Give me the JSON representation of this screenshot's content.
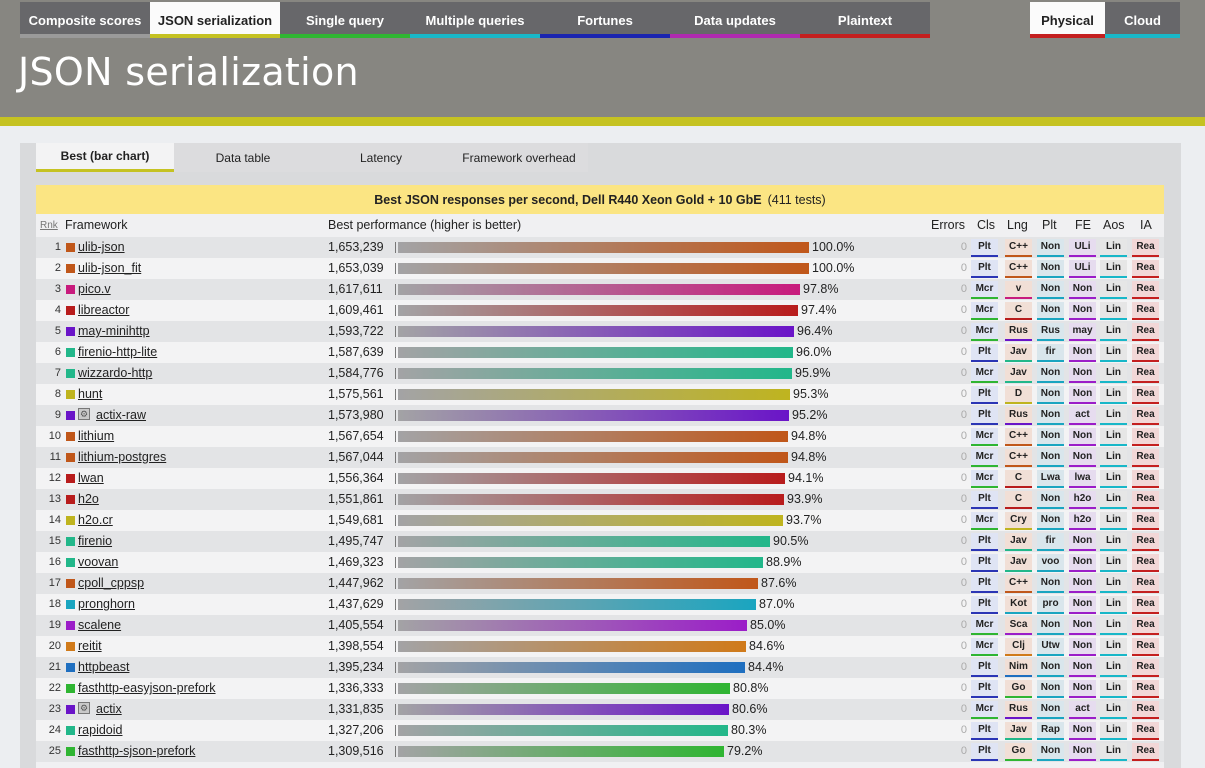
{
  "nav": {
    "tabs": [
      {
        "label": "Composite scores",
        "color": "#9a9a9a",
        "active": false
      },
      {
        "label": "JSON serialization",
        "color": "#c5c222",
        "active": true
      },
      {
        "label": "Single query",
        "color": "#2fb532",
        "active": false
      },
      {
        "label": "Multiple queries",
        "color": "#18b7c8",
        "active": false
      },
      {
        "label": "Fortunes",
        "color": "#1a24b0",
        "active": false
      },
      {
        "label": "Data updates",
        "color": "#b02ab0",
        "active": false
      },
      {
        "label": "Plaintext",
        "color": "#c41f1f",
        "active": false
      }
    ],
    "hardware": [
      {
        "label": "Physical",
        "color": "#c41f1f",
        "active": true
      },
      {
        "label": "Cloud",
        "color": "#18b7c8",
        "active": false
      }
    ]
  },
  "page_title": "JSON serialization",
  "subtabs": [
    {
      "label": "Best (bar chart)",
      "active": true
    },
    {
      "label": "Data table",
      "active": false
    },
    {
      "label": "Latency",
      "active": false
    },
    {
      "label": "Framework overhead",
      "active": false
    }
  ],
  "caption": {
    "title": "Best JSON responses per second, Dell R440 Xeon Gold + 10 GbE",
    "tests": "(411 tests)"
  },
  "columns": {
    "rank": "Rnk",
    "framework": "Framework",
    "performance": "Best performance (higher is better)",
    "errors": "Errors",
    "cls": "Cls",
    "lng": "Lng",
    "plt": "Plt",
    "fe": "FE",
    "aos": "Aos",
    "ia": "IA"
  },
  "colors": {
    "accent": "#c5c222",
    "header": "#878681",
    "caption": "#fbe583"
  },
  "rows": [
    {
      "rank": "1",
      "name": "ulib-json",
      "value": "1,653,239",
      "pct": 100.0,
      "pct_label": "100.0%",
      "color": "#c0571a",
      "errors": "0",
      "cls": "Plt",
      "lng": "C++",
      "plt": "Non",
      "fe": "ULi",
      "aos": "Lin",
      "ia": "Rea"
    },
    {
      "rank": "2",
      "name": "ulib-json_fit",
      "value": "1,653,039",
      "pct": 100.0,
      "pct_label": "100.0%",
      "color": "#c0571a",
      "errors": "0",
      "cls": "Plt",
      "lng": "C++",
      "plt": "Non",
      "fe": "ULi",
      "aos": "Lin",
      "ia": "Rea"
    },
    {
      "rank": "3",
      "name": "pico.v",
      "value": "1,617,611",
      "pct": 97.8,
      "pct_label": "97.8%",
      "color": "#c81b7d",
      "errors": "0",
      "cls": "Mcr",
      "lng": "v",
      "plt": "Non",
      "fe": "Non",
      "aos": "Lin",
      "ia": "Rea"
    },
    {
      "rank": "4",
      "name": "libreactor",
      "value": "1,609,461",
      "pct": 97.4,
      "pct_label": "97.4%",
      "color": "#b81c1c",
      "errors": "0",
      "cls": "Mcr",
      "lng": "C",
      "plt": "Non",
      "fe": "Non",
      "aos": "Lin",
      "ia": "Rea"
    },
    {
      "rank": "5",
      "name": "may-minihttp",
      "value": "1,593,722",
      "pct": 96.4,
      "pct_label": "96.4%",
      "color": "#6a14c8",
      "errors": "0",
      "cls": "Mcr",
      "lng": "Rus",
      "plt": "Rus",
      "fe": "may",
      "aos": "Lin",
      "ia": "Rea"
    },
    {
      "rank": "6",
      "name": "firenio-http-lite",
      "value": "1,587,639",
      "pct": 96.0,
      "pct_label": "96.0%",
      "color": "#22b78a",
      "errors": "0",
      "cls": "Plt",
      "lng": "Jav",
      "plt": "fir",
      "fe": "Non",
      "aos": "Lin",
      "ia": "Rea"
    },
    {
      "rank": "7",
      "name": "wizzardo-http",
      "value": "1,584,776",
      "pct": 95.9,
      "pct_label": "95.9%",
      "color": "#22b78a",
      "errors": "0",
      "cls": "Mcr",
      "lng": "Jav",
      "plt": "Non",
      "fe": "Non",
      "aos": "Lin",
      "ia": "Rea"
    },
    {
      "rank": "8",
      "name": "hunt",
      "value": "1,575,561",
      "pct": 95.3,
      "pct_label": "95.3%",
      "color": "#bfb41f",
      "errors": "0",
      "cls": "Plt",
      "lng": "D",
      "plt": "Non",
      "fe": "Non",
      "aos": "Lin",
      "ia": "Rea"
    },
    {
      "rank": "9",
      "name": "actix-raw",
      "value": "1,573,980",
      "pct": 95.2,
      "pct_label": "95.2%",
      "color": "#6a14c8",
      "errors": "0",
      "cls": "Plt",
      "lng": "Rus",
      "plt": "Non",
      "fe": "act",
      "aos": "Lin",
      "ia": "Rea",
      "icon": "certified-icon",
      "icon_glyph": "⚙"
    },
    {
      "rank": "10",
      "name": "lithium",
      "value": "1,567,654",
      "pct": 94.8,
      "pct_label": "94.8%",
      "color": "#c0571a",
      "errors": "0",
      "cls": "Mcr",
      "lng": "C++",
      "plt": "Non",
      "fe": "Non",
      "aos": "Lin",
      "ia": "Rea"
    },
    {
      "rank": "11",
      "name": "lithium-postgres",
      "value": "1,567,044",
      "pct": 94.8,
      "pct_label": "94.8%",
      "color": "#c0571a",
      "errors": "0",
      "cls": "Mcr",
      "lng": "C++",
      "plt": "Non",
      "fe": "Non",
      "aos": "Lin",
      "ia": "Rea"
    },
    {
      "rank": "12",
      "name": "lwan",
      "value": "1,556,364",
      "pct": 94.1,
      "pct_label": "94.1%",
      "color": "#b81c1c",
      "errors": "0",
      "cls": "Mcr",
      "lng": "C",
      "plt": "Lwa",
      "fe": "lwa",
      "aos": "Lin",
      "ia": "Rea"
    },
    {
      "rank": "13",
      "name": "h2o",
      "value": "1,551,861",
      "pct": 93.9,
      "pct_label": "93.9%",
      "color": "#b81c1c",
      "errors": "0",
      "cls": "Plt",
      "lng": "C",
      "plt": "Non",
      "fe": "h2o",
      "aos": "Lin",
      "ia": "Rea"
    },
    {
      "rank": "14",
      "name": "h2o.cr",
      "value": "1,549,681",
      "pct": 93.7,
      "pct_label": "93.7%",
      "color": "#bfb41f",
      "errors": "0",
      "cls": "Mcr",
      "lng": "Cry",
      "plt": "Non",
      "fe": "h2o",
      "aos": "Lin",
      "ia": "Rea"
    },
    {
      "rank": "15",
      "name": "firenio",
      "value": "1,495,747",
      "pct": 90.5,
      "pct_label": "90.5%",
      "color": "#22b78a",
      "errors": "0",
      "cls": "Plt",
      "lng": "Jav",
      "plt": "fir",
      "fe": "Non",
      "aos": "Lin",
      "ia": "Rea"
    },
    {
      "rank": "16",
      "name": "voovan",
      "value": "1,469,323",
      "pct": 88.9,
      "pct_label": "88.9%",
      "color": "#22b78a",
      "errors": "0",
      "cls": "Plt",
      "lng": "Jav",
      "plt": "voo",
      "fe": "Non",
      "aos": "Lin",
      "ia": "Rea"
    },
    {
      "rank": "17",
      "name": "cpoll_cppsp",
      "value": "1,447,962",
      "pct": 87.6,
      "pct_label": "87.6%",
      "color": "#c0571a",
      "errors": "0",
      "cls": "Plt",
      "lng": "C++",
      "plt": "Non",
      "fe": "Non",
      "aos": "Lin",
      "ia": "Rea"
    },
    {
      "rank": "18",
      "name": "pronghorn",
      "value": "1,437,629",
      "pct": 87.0,
      "pct_label": "87.0%",
      "color": "#1aa5c0",
      "errors": "0",
      "cls": "Plt",
      "lng": "Kot",
      "plt": "pro",
      "fe": "Non",
      "aos": "Lin",
      "ia": "Rea"
    },
    {
      "rank": "19",
      "name": "scalene",
      "value": "1,405,554",
      "pct": 85.0,
      "pct_label": "85.0%",
      "color": "#9b1dc8",
      "errors": "0",
      "cls": "Mcr",
      "lng": "Sca",
      "plt": "Non",
      "fe": "Non",
      "aos": "Lin",
      "ia": "Rea"
    },
    {
      "rank": "20",
      "name": "reitit",
      "value": "1,398,554",
      "pct": 84.6,
      "pct_label": "84.6%",
      "color": "#d07a1a",
      "errors": "0",
      "cls": "Mcr",
      "lng": "Clj",
      "plt": "Utw",
      "fe": "Non",
      "aos": "Lin",
      "ia": "Rea"
    },
    {
      "rank": "21",
      "name": "httpbeast",
      "value": "1,395,234",
      "pct": 84.4,
      "pct_label": "84.4%",
      "color": "#1f6fc0",
      "errors": "0",
      "cls": "Plt",
      "lng": "Nim",
      "plt": "Non",
      "fe": "Non",
      "aos": "Lin",
      "ia": "Rea"
    },
    {
      "rank": "22",
      "name": "fasthttp-easyjson-prefork",
      "value": "1,336,333",
      "pct": 80.8,
      "pct_label": "80.8%",
      "color": "#2fb532",
      "errors": "0",
      "cls": "Plt",
      "lng": "Go",
      "plt": "Non",
      "fe": "Non",
      "aos": "Lin",
      "ia": "Rea"
    },
    {
      "rank": "23",
      "name": "actix",
      "value": "1,331,835",
      "pct": 80.6,
      "pct_label": "80.6%",
      "color": "#6a14c8",
      "errors": "0",
      "cls": "Mcr",
      "lng": "Rus",
      "plt": "Non",
      "fe": "act",
      "aos": "Lin",
      "ia": "Rea",
      "icon": "certified-icon",
      "icon_glyph": "⚙"
    },
    {
      "rank": "24",
      "name": "rapidoid",
      "value": "1,327,206",
      "pct": 80.3,
      "pct_label": "80.3%",
      "color": "#22b78a",
      "errors": "0",
      "cls": "Plt",
      "lng": "Jav",
      "plt": "Rap",
      "fe": "Non",
      "aos": "Lin",
      "ia": "Rea"
    },
    {
      "rank": "25",
      "name": "fasthttp-sjson-prefork",
      "value": "1,309,516",
      "pct": 79.2,
      "pct_label": "79.2%",
      "color": "#2fb532",
      "errors": "0",
      "cls": "Plt",
      "lng": "Go",
      "plt": "Non",
      "fe": "Non",
      "aos": "Lin",
      "ia": "Rea"
    }
  ]
}
